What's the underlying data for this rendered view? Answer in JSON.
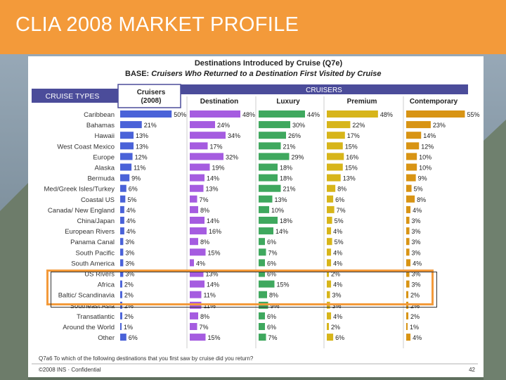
{
  "header": {
    "title": "CLIA 2008 MARKET PROFILE"
  },
  "table": {
    "title": "Destinations Introduced by Cruise (Q7e)",
    "base_label": "BASE:",
    "base_text": "Cruisers Who Returned to a Destination First Visited by Cruise",
    "row_header": "CRUISE TYPES",
    "group_header": "CRUISERS",
    "columns": [
      "Cruisers\n(2008)",
      "Destination",
      "Luxury",
      "Premium",
      "Contemporary"
    ],
    "footnote": "Q7a6   To which of the following destinations that you first saw by cruise did you return?",
    "copyright": "©2008  INS · Confidential",
    "page_number": "42"
  },
  "chart_data": {
    "type": "bar",
    "title": "Destinations Introduced by Cruise (Q7e)",
    "subtitle": "BASE: Cruisers Who Returned to a Destination First Visited by Cruise",
    "categories": [
      "Caribbean",
      "Bahamas",
      "Hawaii",
      "West Coast Mexico",
      "Europe",
      "Alaska",
      "Bermuda",
      "Med/Greek Isles/Turkey",
      "Coastal US",
      "Canada/ New England",
      "China/Japan",
      "European Rivers",
      "Panama Canal",
      "South Pacific",
      "South America",
      "US Rivers",
      "Africa",
      "Baltic/ Scandinavia",
      "Southeast Asia",
      "Transatlantic",
      "Around the World",
      "Other"
    ],
    "series": [
      {
        "name": "Cruisers (2008)",
        "values": [
          50,
          21,
          13,
          13,
          12,
          11,
          9,
          6,
          5,
          4,
          4,
          4,
          3,
          3,
          3,
          3,
          2,
          2,
          2,
          2,
          1,
          6
        ]
      },
      {
        "name": "Destination",
        "values": [
          48,
          24,
          34,
          17,
          32,
          19,
          14,
          13,
          7,
          8,
          14,
          16,
          8,
          15,
          4,
          13,
          14,
          11,
          11,
          8,
          7,
          15
        ]
      },
      {
        "name": "Luxury",
        "values": [
          44,
          30,
          26,
          21,
          29,
          18,
          18,
          21,
          13,
          10,
          18,
          14,
          6,
          7,
          6,
          6,
          15,
          8,
          9,
          6,
          6,
          7
        ]
      },
      {
        "name": "Premium",
        "values": [
          48,
          22,
          17,
          15,
          16,
          15,
          13,
          8,
          6,
          7,
          5,
          4,
          5,
          4,
          4,
          2,
          4,
          3,
          3,
          4,
          2,
          6
        ]
      },
      {
        "name": "Contemporary",
        "values": [
          55,
          23,
          14,
          12,
          10,
          10,
          9,
          5,
          8,
          4,
          3,
          3,
          3,
          3,
          4,
          3,
          3,
          2,
          2,
          2,
          1,
          4
        ]
      }
    ],
    "colors": [
      "#4a62d8",
      "#a55ce0",
      "#3fa85e",
      "#d7b51a",
      "#d89414"
    ],
    "unit": "%",
    "highlighted_rows": [
      "US Rivers",
      "Africa",
      "Baltic/ Scandinavia"
    ]
  }
}
